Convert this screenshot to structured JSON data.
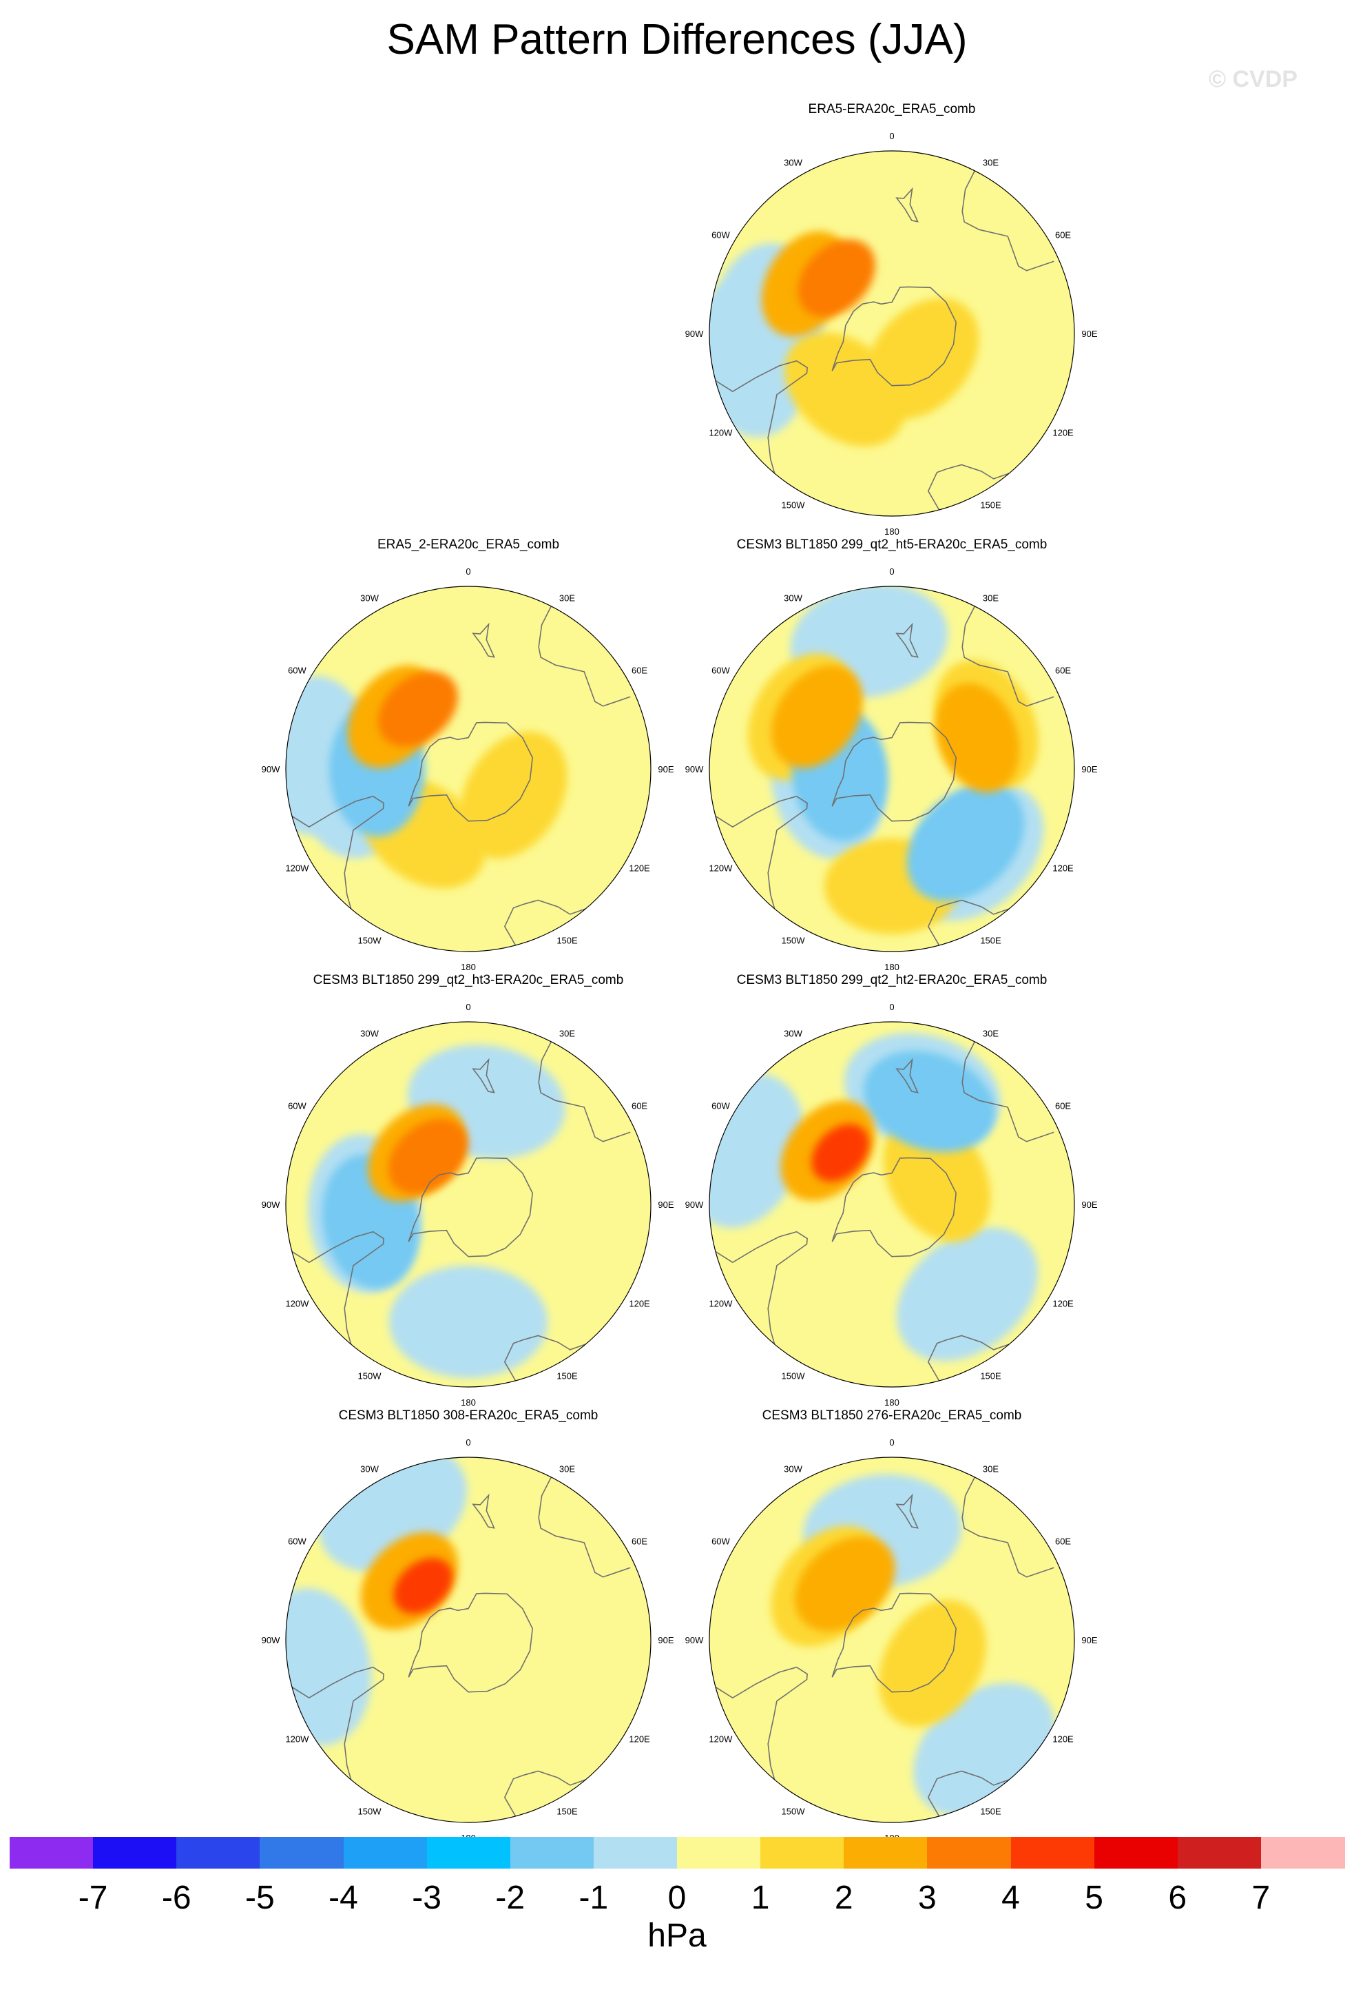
{
  "title": "SAM Pattern Differences (JJA)",
  "watermark": "© CVDP",
  "map": {
    "projection": "polar-stereographic-south",
    "lon_labels": [
      "0",
      "30E",
      "60E",
      "90E",
      "120E",
      "150E",
      "180",
      "150W",
      "120W",
      "90W",
      "60W",
      "30W"
    ]
  },
  "panels": [
    {
      "title": "ERA5-ERA20c_ERA5_comb",
      "anomalies": [
        {
          "lon": -120,
          "lat": -52,
          "level": 3
        },
        {
          "lon": -135,
          "lat": -60,
          "level": 4
        },
        {
          "lon": -40,
          "lat": -62,
          "level": 2
        },
        {
          "lon": 50,
          "lat": -75,
          "level": 2
        },
        {
          "lon": 45,
          "lat": -40,
          "level": 1
        },
        {
          "lon": -80,
          "lat": -35,
          "level": -1
        },
        {
          "lon": -95,
          "lat": -42,
          "level": -1
        }
      ]
    },
    {
      "title": "ERA5_2-ERA20c_ERA5_comb",
      "anomalies": [
        {
          "lon": -125,
          "lat": -55,
          "level": 3
        },
        {
          "lon": -140,
          "lat": -60,
          "level": 4
        },
        {
          "lon": -35,
          "lat": -60,
          "level": 2
        },
        {
          "lon": 60,
          "lat": -70,
          "level": 2
        },
        {
          "lon": -85,
          "lat": -45,
          "level": -1
        },
        {
          "lon": -95,
          "lat": -30,
          "level": -1
        },
        {
          "lon": -90,
          "lat": -55,
          "level": -2
        }
      ]
    },
    {
      "title": "CESM3 BLT1850 299_qt2_ht5-ERA20c_ERA5_comb",
      "anomalies": [
        {
          "lon": -120,
          "lat": -50,
          "level": 2
        },
        {
          "lon": -125,
          "lat": -55,
          "level": 3
        },
        {
          "lon": 0,
          "lat": -45,
          "level": 2
        },
        {
          "lon": 115,
          "lat": -50,
          "level": 2
        },
        {
          "lon": 110,
          "lat": -55,
          "level": 3
        },
        {
          "lon": -80,
          "lat": -65,
          "level": -1
        },
        {
          "lon": -85,
          "lat": -70,
          "level": -2
        },
        {
          "lon": 45,
          "lat": -45,
          "level": -1
        },
        {
          "lon": 45,
          "lat": -50,
          "level": -2
        },
        {
          "lon": -170,
          "lat": -40,
          "level": -1
        }
      ]
    },
    {
      "title": "CESM3 BLT1850 299_qt2_ht3-ERA20c_ERA5_comb",
      "anomalies": [
        {
          "lon": -135,
          "lat": -62,
          "level": 3
        },
        {
          "lon": -140,
          "lat": -66,
          "level": 4
        },
        {
          "lon": 60,
          "lat": -45,
          "level": 1
        },
        {
          "lon": -10,
          "lat": -60,
          "level": 1
        },
        {
          "lon": -85,
          "lat": -50,
          "level": -1
        },
        {
          "lon": -80,
          "lat": -52,
          "level": -2
        },
        {
          "lon": 170,
          "lat": -50,
          "level": -1
        },
        {
          "lon": 0,
          "lat": -45,
          "level": -1
        }
      ]
    },
    {
      "title": "CESM3 BLT1850 299_qt2_ht2-ERA20c_ERA5_comb",
      "anomalies": [
        {
          "lon": -130,
          "lat": -58,
          "level": 3
        },
        {
          "lon": -135,
          "lat": -62,
          "level": 5
        },
        {
          "lon": 0,
          "lat": -55,
          "level": 1
        },
        {
          "lon": 120,
          "lat": -70,
          "level": 2
        },
        {
          "lon": 165,
          "lat": -45,
          "level": -1
        },
        {
          "lon": 160,
          "lat": -48,
          "level": -2
        },
        {
          "lon": 40,
          "lat": -45,
          "level": -1
        },
        {
          "lon": -110,
          "lat": -30,
          "level": -1
        }
      ]
    },
    {
      "title": "CESM3 BLT1850 308-ERA20c_ERA5_comb",
      "anomalies": [
        {
          "lon": -135,
          "lat": -58,
          "level": 3
        },
        {
          "lon": -140,
          "lat": -63,
          "level": 5
        },
        {
          "lon": -20,
          "lat": -55,
          "level": 1
        },
        {
          "lon": 60,
          "lat": -70,
          "level": 1
        },
        {
          "lon": -150,
          "lat": -32,
          "level": -1
        },
        {
          "lon": -80,
          "lat": -30,
          "level": -1
        }
      ]
    },
    {
      "title": "CESM3 BLT1850 276-ERA20c_ERA5_comb",
      "anomalies": [
        {
          "lon": -130,
          "lat": -58,
          "level": 2
        },
        {
          "lon": -140,
          "lat": -62,
          "level": 3
        },
        {
          "lon": 0,
          "lat": -55,
          "level": 1
        },
        {
          "lon": 60,
          "lat": -72,
          "level": 2
        },
        {
          "lon": -175,
          "lat": -48,
          "level": -1
        },
        {
          "lon": 40,
          "lat": -35,
          "level": -1
        }
      ]
    }
  ],
  "colorbar": {
    "colors": [
      "#8e2bf0",
      "#1d0ff5",
      "#2a45eb",
      "#3178e8",
      "#1ea0f7",
      "#01c2fe",
      "#74c9f2",
      "#b3dff2",
      "#fcf992",
      "#fdd831",
      "#fcad03",
      "#fc7b05",
      "#fd3a04",
      "#e90102",
      "#d01f1f",
      "#fcb7b6"
    ],
    "labels": [
      "-7",
      "-6",
      "-5",
      "-4",
      "-3",
      "-2",
      "-1",
      "0",
      "1",
      "2",
      "3",
      "4",
      "5",
      "6",
      "7"
    ],
    "units": "hPa"
  }
}
